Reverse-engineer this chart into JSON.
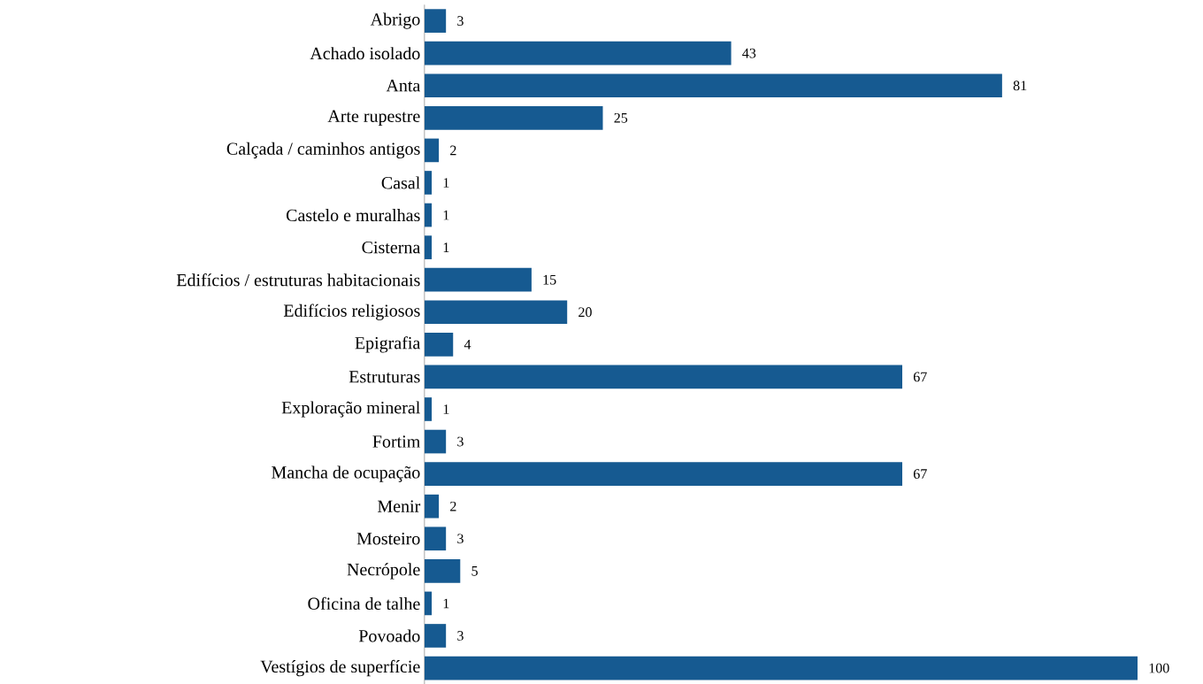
{
  "chart_data": {
    "type": "bar",
    "orientation": "horizontal",
    "data_labels": true,
    "color": "#165a91",
    "categories": [
      "Abrigo",
      "Achado isolado",
      "Anta",
      "Arte rupestre",
      "Calçada / caminhos antigos",
      "Casal",
      "Castelo e muralhas",
      "Cisterna",
      "Edifícios / estruturas habitacionais",
      "Edifícios religiosos",
      "Epigrafia",
      "Estruturas",
      "Exploração mineral",
      "Fortim",
      "Mancha de ocupação",
      "Menir",
      "Mosteiro",
      "Necrópole",
      "Oficina de talhe",
      "Povoado",
      "Vestígios de superfície"
    ],
    "values": [
      3,
      43,
      81,
      25,
      2,
      1,
      1,
      1,
      15,
      20,
      4,
      67,
      1,
      3,
      67,
      2,
      3,
      5,
      1,
      3,
      100
    ]
  }
}
